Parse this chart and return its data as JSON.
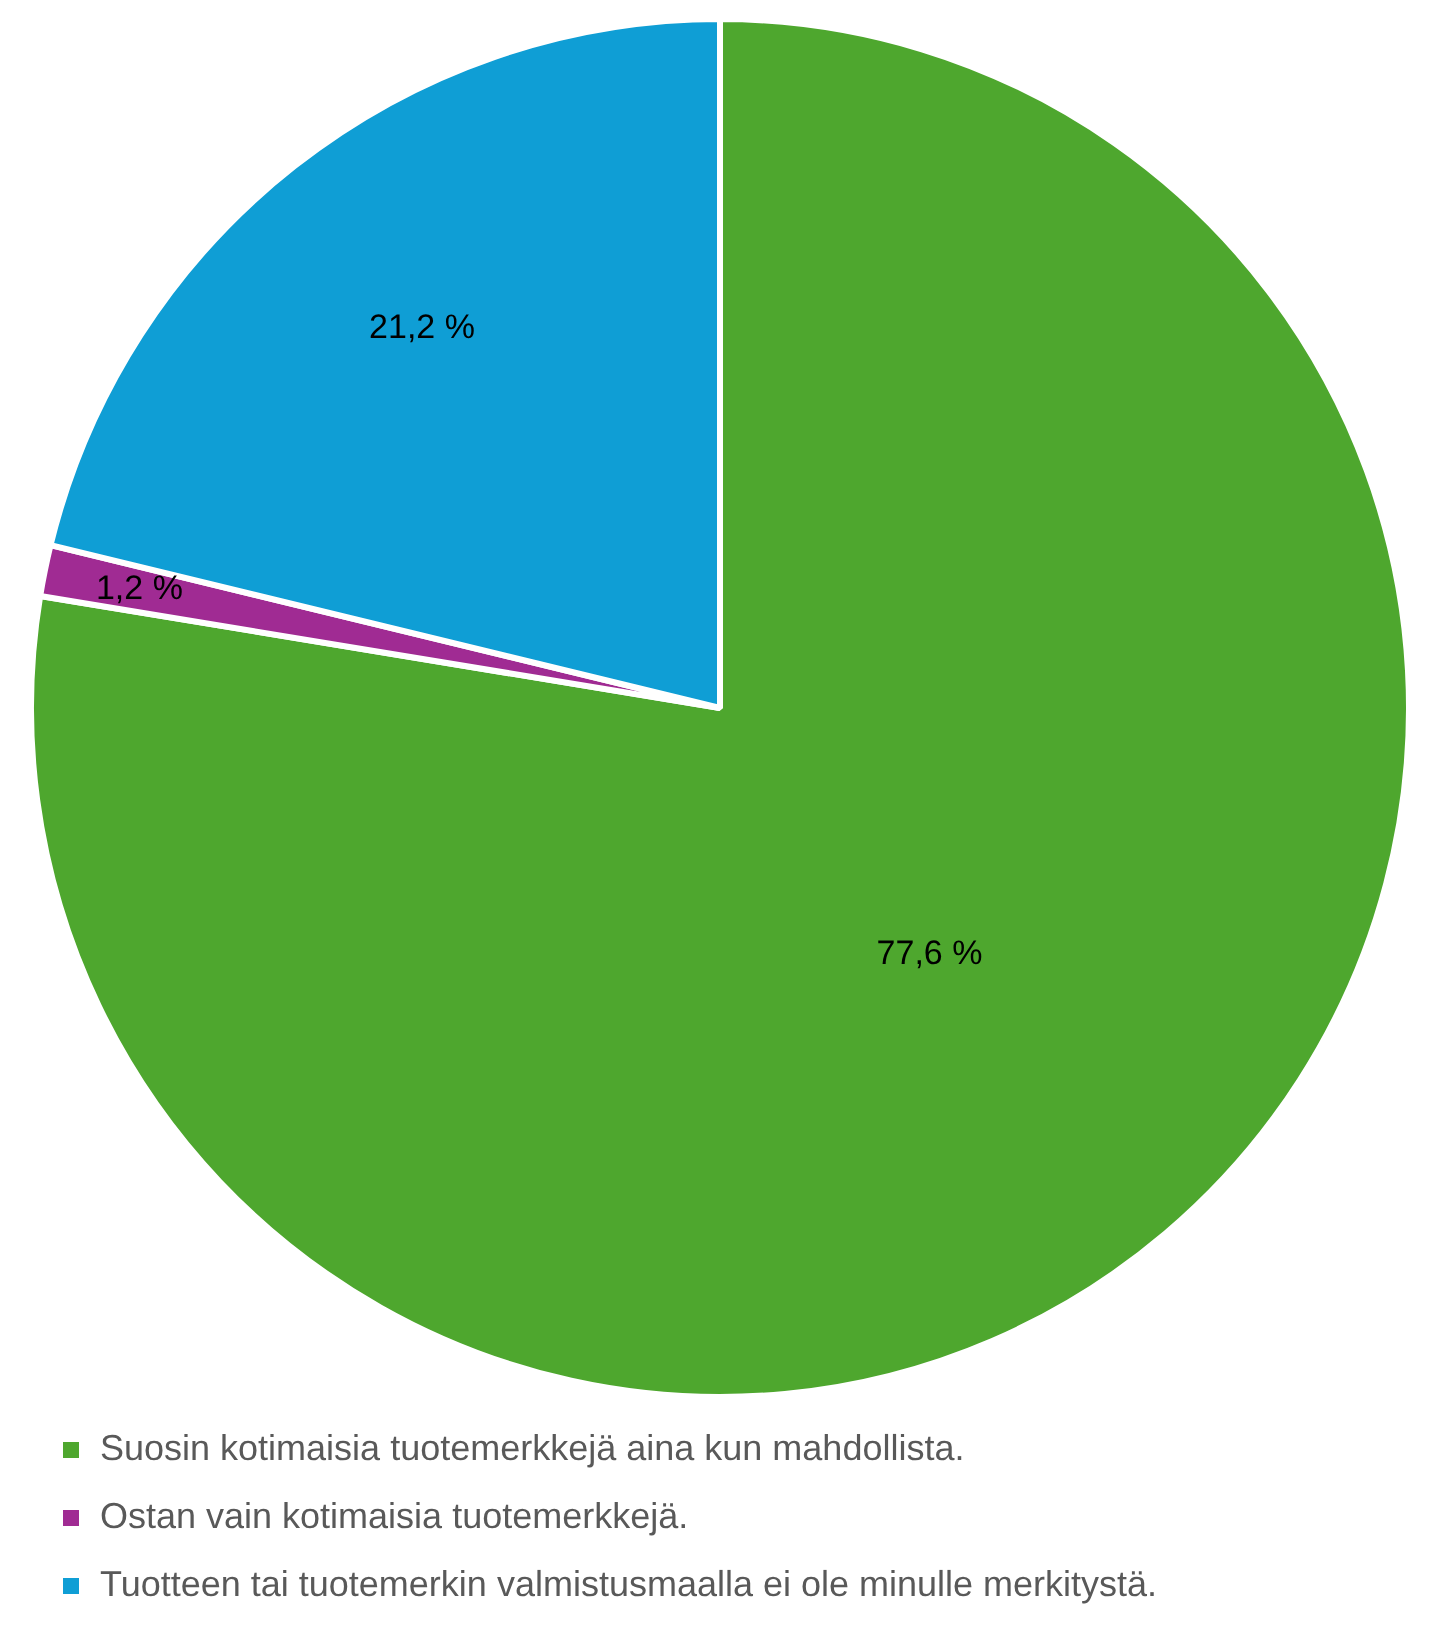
{
  "chart_data": {
    "type": "pie",
    "categories": [
      "Suosin kotimaisia tuotemerkkejä aina kun mahdollista.",
      "Ostan vain kotimaisia tuotemerkkejä.",
      "Tuotteen tai tuotemerkin valmistusmaalla ei ole minulle merkitystä."
    ],
    "values": [
      77.6,
      1.2,
      21.2
    ],
    "value_labels": [
      "77,6 %",
      "1,2 %",
      "21,2 %"
    ],
    "colors": [
      "#4ea72e",
      "#a02b93",
      "#0f9ed5"
    ],
    "legend": "bottom"
  }
}
